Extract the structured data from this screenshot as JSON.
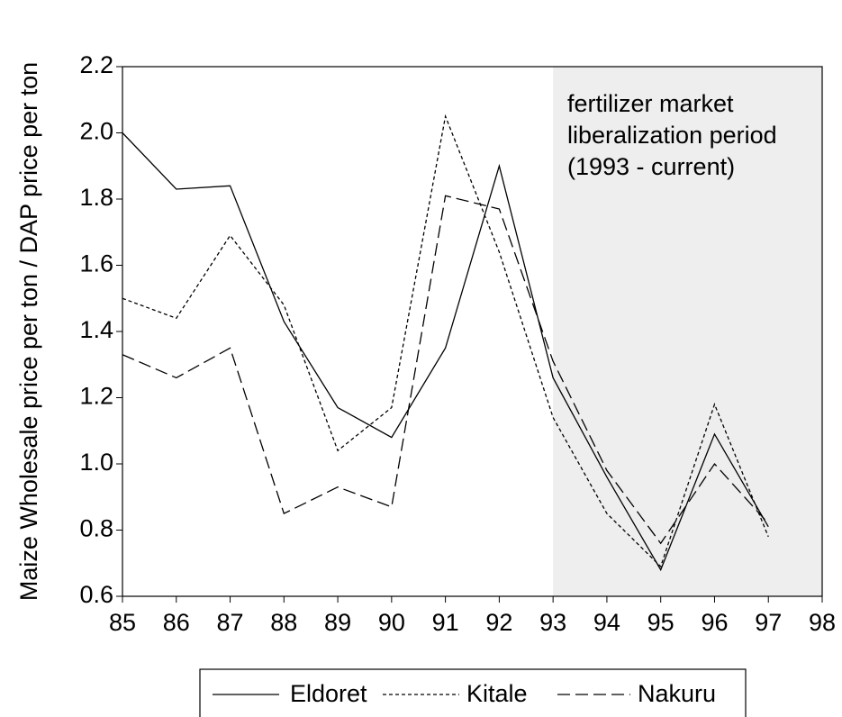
{
  "chart_data": {
    "type": "line",
    "y_label": "Maize Wholesale price per ton / DAP price per ton",
    "x": [
      85,
      86,
      87,
      88,
      89,
      90,
      91,
      92,
      93,
      94,
      95,
      96,
      97
    ],
    "xlim": [
      85,
      98
    ],
    "xticks": [
      85,
      86,
      87,
      88,
      89,
      90,
      91,
      92,
      93,
      94,
      95,
      96,
      97,
      98
    ],
    "ylim": [
      0.6,
      2.2
    ],
    "yticks": [
      0.6,
      0.8,
      {
        "value": 1,
        "label": "1.0"
      },
      1.2,
      1.4,
      1.6,
      1.8,
      {
        "value": 2,
        "label": "2.0"
      },
      2.2
    ],
    "shade": [
      93,
      98
    ],
    "shade_color": "#eeeeee",
    "annotation": [
      "fertilizer market",
      "liberalization period",
      "(1993 - current)"
    ],
    "series": [
      {
        "name": "Eldoret",
        "color": "#000000",
        "dash": "none",
        "values": [
          2.0,
          1.83,
          1.84,
          1.43,
          1.17,
          1.08,
          1.35,
          1.9,
          1.26,
          0.96,
          0.68,
          1.09,
          0.81
        ]
      },
      {
        "name": "Kitale",
        "color": "#000000",
        "dash": "4 3",
        "values": [
          1.5,
          1.44,
          1.69,
          1.48,
          1.04,
          1.17,
          2.05,
          1.64,
          1.14,
          0.85,
          0.69,
          1.18,
          0.78
        ]
      },
      {
        "name": "Nakuru",
        "color": "#000000",
        "dash": "14 6",
        "values": [
          1.33,
          1.26,
          1.35,
          0.85,
          0.93,
          0.87,
          1.81,
          1.77,
          1.31,
          0.98,
          0.76,
          1.0,
          0.82
        ]
      }
    ]
  }
}
